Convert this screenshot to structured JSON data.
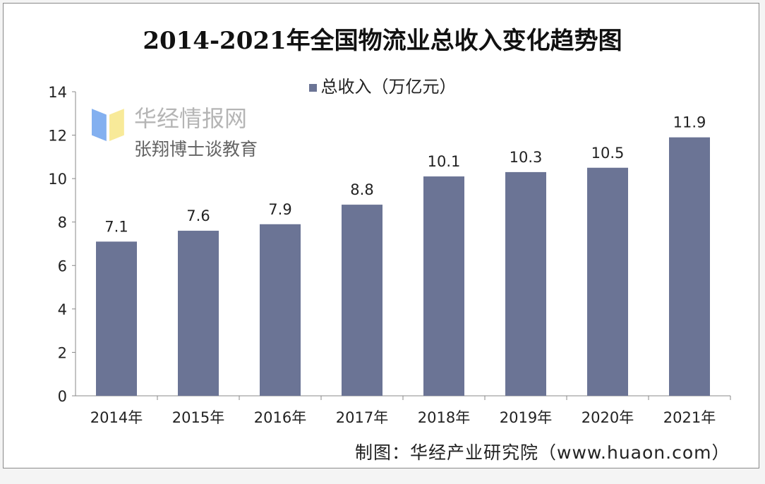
{
  "chart_data": {
    "type": "bar",
    "title": "2014-2021年全国物流业总收入变化趋势图",
    "categories": [
      "2014年",
      "2015年",
      "2016年",
      "2017年",
      "2018年",
      "2019年",
      "2020年",
      "2021年"
    ],
    "series": [
      {
        "name": "总收入（万亿元）",
        "values": [
          7.1,
          7.6,
          7.9,
          8.8,
          10.1,
          10.3,
          10.5,
          11.9
        ]
      }
    ],
    "data_labels": [
      "7.1",
      "7.6",
      "7.9",
      "8.8",
      "10.1",
      "10.3",
      "10.5",
      "11.9"
    ],
    "y_ticks": [
      "0",
      "2",
      "4",
      "6",
      "8",
      "10",
      "12",
      "14"
    ],
    "ylim": [
      0,
      14
    ],
    "xlabel": "",
    "ylabel": "",
    "grid": false,
    "legend": "top-center",
    "bar_color": "#6b7495"
  },
  "source": "制图：华经产业研究院（www.huaon.com）",
  "watermark": {
    "site": "华经情报网",
    "account": "张翔博士谈教育"
  }
}
